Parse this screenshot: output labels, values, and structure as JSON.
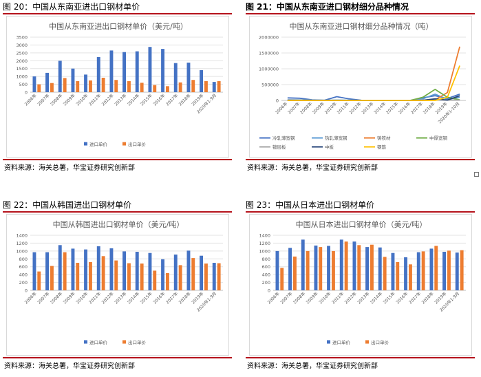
{
  "figures": [
    {
      "caption": "图 20：中国从东南亚进出口钢材单价",
      "source": "资料来源：海关总署，华宝证券研究创新部",
      "chart_data": {
        "type": "bar",
        "title": "中国从东南亚进出口钢材单价（美元/吨）",
        "categories": [
          "2006年",
          "2007年",
          "2008年",
          "2009年",
          "2010年",
          "2011年",
          "2012年",
          "2013年",
          "2014年",
          "2015年",
          "2016年",
          "2017年",
          "2018年",
          "2019年",
          "2020年1-9月"
        ],
        "series": [
          {
            "name": "进口单价",
            "color": "#4472c4",
            "values": [
              1000,
              1230,
              2000,
              1500,
              1120,
              2230,
              2650,
              2550,
              2600,
              2880,
              2750,
              1850,
              1880,
              1400,
              650
            ]
          },
          {
            "name": "出口单价",
            "color": "#ed7d31",
            "values": [
              500,
              580,
              900,
              700,
              750,
              920,
              780,
              700,
              600,
              450,
              380,
              620,
              780,
              700,
              700
            ]
          }
        ],
        "yticks": [
          "0",
          "500",
          "1000",
          "1500",
          "2000",
          "2500",
          "3000",
          "3500"
        ],
        "ylim": [
          0,
          3500
        ],
        "legend": "bottom",
        "grid": true
      }
    },
    {
      "caption": "图 21：中国从东南亚进口钢材细分品种情况",
      "source": "资料来源：海关总署，华宝证券研究创新部",
      "chart_data": {
        "type": "line",
        "title": "中国从东南亚进口钢材细分品种情况（吨）",
        "categories": [
          "2006年",
          "2007年",
          "2008年",
          "2009年",
          "2010年",
          "2011年",
          "2012年",
          "2013年",
          "2014年",
          "2015年",
          "2016年",
          "2017年",
          "2018年",
          "2019年",
          "2020年1-10月"
        ],
        "series": [
          {
            "name": "冷轧薄宽钢",
            "color": "#4472c4",
            "values": [
              80000,
              70000,
              20000,
              5000,
              120000,
              50000,
              5000,
              2000,
              2000,
              2000,
              2000,
              80000,
              150000,
              60000,
              200000
            ]
          },
          {
            "name": "热轧薄宽钢",
            "color": "#5b9bd5",
            "values": [
              20000,
              15000,
              10000,
              5000,
              10000,
              8000,
              3000,
              2000,
              2000,
              2000,
              2000,
              50000,
              200000,
              30000,
              100000
            ]
          },
          {
            "name": "铸铁材",
            "color": "#ed7d31",
            "values": [
              0,
              0,
              0,
              0,
              0,
              0,
              0,
              0,
              0,
              0,
              0,
              0,
              20000,
              250000,
              1700000
            ]
          },
          {
            "name": "中厚宽钢",
            "color": "#70ad47",
            "values": [
              5000,
              5000,
              3000,
              2000,
              2000,
              2000,
              1000,
              1000,
              1000,
              1000,
              1000,
              100000,
              350000,
              100000,
              20000
            ]
          },
          {
            "name": "镀层板",
            "color": "#a5a5a5",
            "values": [
              10000,
              8000,
              5000,
              3000,
              5000,
              3000,
              2000,
              2000,
              2000,
              2000,
              2000,
              10000,
              20000,
              10000,
              10000
            ]
          },
          {
            "name": "中板",
            "color": "#264478",
            "values": [
              5000,
              3000,
              2000,
              2000,
              2000,
              2000,
              1000,
              1000,
              1000,
              1000,
              1000,
              5000,
              50000,
              10000,
              150000
            ]
          },
          {
            "name": "钢筋",
            "color": "#ffc000",
            "values": [
              0,
              0,
              0,
              0,
              0,
              0,
              0,
              0,
              0,
              0,
              0,
              0,
              0,
              100000,
              1100000
            ]
          }
        ],
        "yticks": [
          "0",
          "500000",
          "1000000",
          "1500000",
          "2000000"
        ],
        "ylim": [
          0,
          2000000
        ],
        "legend": "bottom",
        "grid": true
      }
    },
    {
      "caption": "图 22：中国从韩国进出口钢材单价",
      "source": "资料来源：海关总署，华宝证券研究创新部",
      "chart_data": {
        "type": "bar",
        "title": "中国从韩国进出口钢材单价（美元/吨）",
        "categories": [
          "2006年",
          "2007年",
          "2008年",
          "2009年",
          "2010年",
          "2011年",
          "2012年",
          "2013年",
          "2014年",
          "2015年",
          "2016年",
          "2017年",
          "2018年",
          "2019年",
          "2020年1-9月"
        ],
        "series": [
          {
            "name": "进口单价",
            "color": "#4472c4",
            "values": [
              970,
              970,
              1150,
              1060,
              1040,
              1120,
              1070,
              990,
              980,
              950,
              790,
              910,
              1010,
              880,
              700
            ]
          },
          {
            "name": "出口单价",
            "color": "#ed7d31",
            "values": [
              480,
              620,
              970,
              700,
              720,
              870,
              760,
              690,
              680,
              500,
              440,
              640,
              820,
              680,
              690
            ]
          }
        ],
        "yticks": [
          "0",
          "200",
          "400",
          "600",
          "800",
          "1000",
          "1200",
          "1400"
        ],
        "ylim": [
          0,
          1400
        ],
        "legend": "bottom",
        "grid": true
      }
    },
    {
      "caption": "图 23：中国从日本进出口钢材单价",
      "source": "资料来源：海关总署，华宝证券研究创新部",
      "chart_data": {
        "type": "bar",
        "title": "中国从日本进出口钢材单价（美元/吨）",
        "categories": [
          "2006年",
          "2007年",
          "2008年",
          "2009年",
          "2010年",
          "2011年",
          "2012年",
          "2013年",
          "2014年",
          "2015年",
          "2016年",
          "2017年",
          "2018年",
          "2019年",
          "2020年1-9月"
        ],
        "series": [
          {
            "name": "进口单价",
            "color": "#4472c4",
            "values": [
              1000,
              1080,
              1290,
              1140,
              1130,
              1290,
              1240,
              1100,
              1090,
              950,
              840,
              970,
              1060,
              980,
              960
            ]
          },
          {
            "name": "出口单价",
            "color": "#ed7d31",
            "values": [
              570,
              860,
              1000,
              1100,
              1000,
              1240,
              1150,
              1160,
              850,
              720,
              660,
              990,
              1130,
              1010,
              1020
            ]
          }
        ],
        "yticks": [
          "0",
          "200",
          "400",
          "600",
          "800",
          "1000",
          "1200",
          "1400"
        ],
        "ylim": [
          0,
          1400
        ],
        "legend": "bottom",
        "grid": true
      }
    }
  ]
}
